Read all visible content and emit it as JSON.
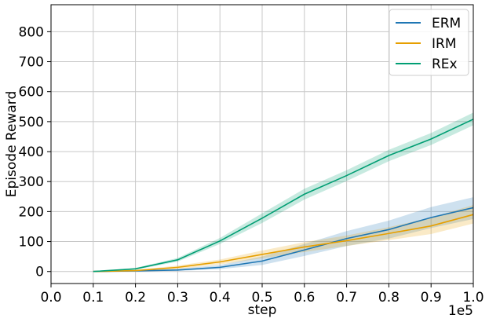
{
  "chart_data": {
    "type": "line",
    "title": "",
    "xlabel": "step",
    "ylabel": "Episode Reward",
    "x_offset_label": "1e5",
    "xlim": [
      0.0,
      1.0
    ],
    "ylim": [
      -40,
      890
    ],
    "x_ticks": [
      "0.0",
      "0.1",
      "0.2",
      "0.3",
      "0.4",
      "0.5",
      "0.6",
      "0.7",
      "0.8",
      "0.9",
      "1.0"
    ],
    "y_ticks": [
      "0",
      "100",
      "200",
      "300",
      "400",
      "500",
      "600",
      "700",
      "800"
    ],
    "grid": true,
    "legend_position": "upper right",
    "x": [
      0.1,
      0.2,
      0.3,
      0.4,
      0.5,
      0.6,
      0.7,
      0.8,
      0.9,
      1.0
    ],
    "series": [
      {
        "name": "ERM",
        "color": "#1f77b4",
        "values": [
          0,
          2,
          5,
          14,
          35,
          72,
          110,
          140,
          180,
          213
        ],
        "lower": [
          0,
          1,
          2,
          8,
          22,
          52,
          85,
          110,
          145,
          175
        ],
        "upper": [
          0,
          3,
          9,
          22,
          50,
          92,
          135,
          170,
          215,
          248
        ]
      },
      {
        "name": "IRM",
        "color": "#e69f00",
        "values": [
          0,
          3,
          14,
          32,
          57,
          82,
          103,
          127,
          152,
          190
        ],
        "lower": [
          0,
          1,
          8,
          24,
          44,
          65,
          85,
          105,
          125,
          160
        ],
        "upper": [
          0,
          5,
          20,
          40,
          70,
          98,
          120,
          148,
          180,
          222
        ]
      },
      {
        "name": "REx",
        "color": "#009e73",
        "values": [
          0,
          9,
          39,
          102,
          178,
          258,
          320,
          387,
          442,
          508
        ],
        "lower": [
          0,
          6,
          33,
          92,
          162,
          240,
          302,
          368,
          422,
          488
        ],
        "upper": [
          0,
          12,
          45,
          112,
          194,
          276,
          338,
          406,
          462,
          530
        ]
      }
    ]
  }
}
